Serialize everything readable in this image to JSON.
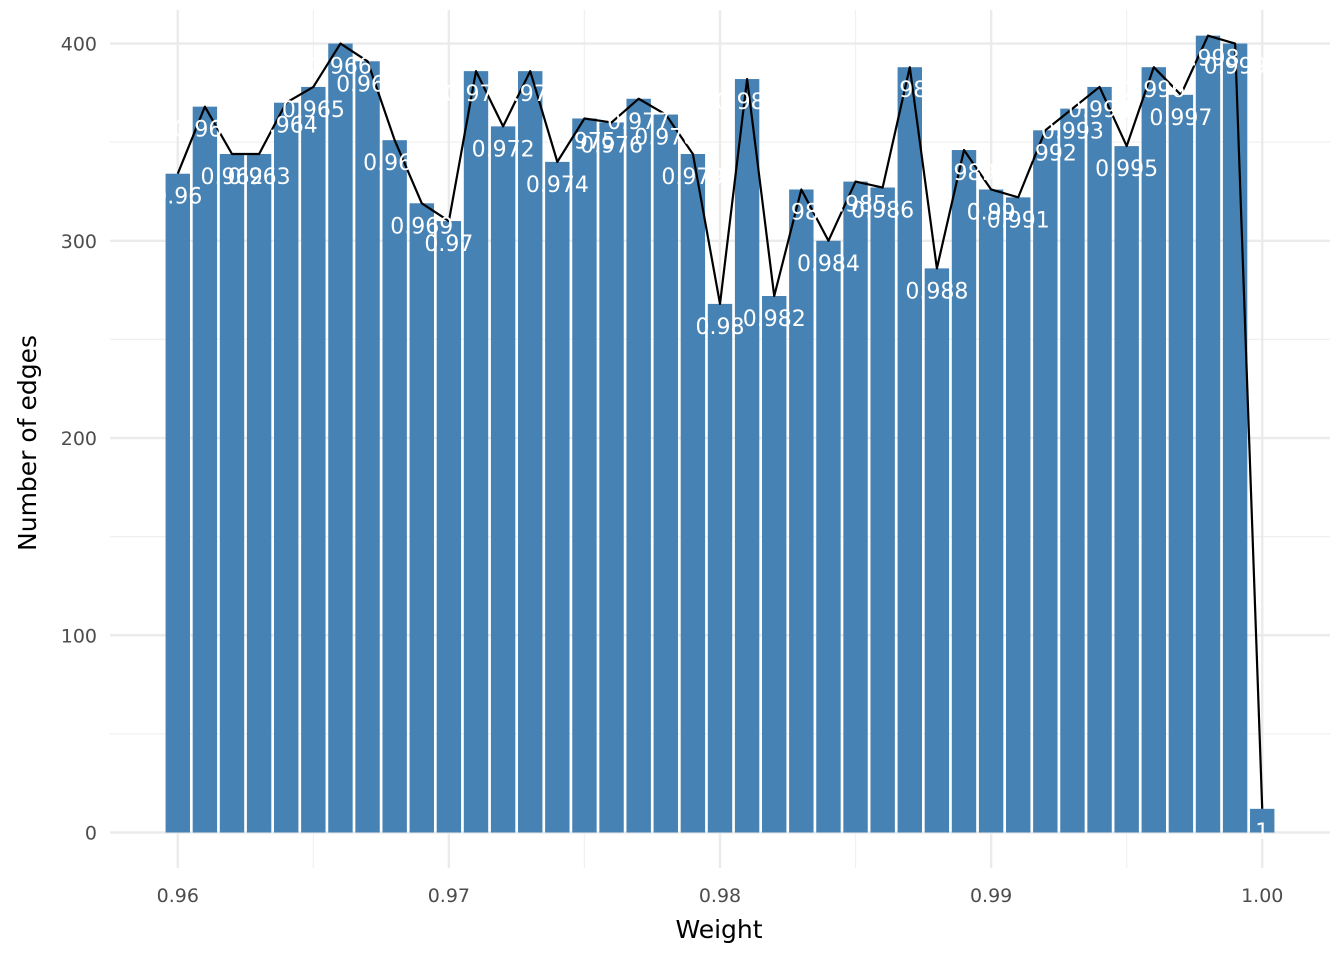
{
  "chart_data": {
    "type": "bar",
    "title": "",
    "xlabel": "Weight",
    "ylabel": "Number of edges",
    "x_ticks": [
      "0.96",
      "0.97",
      "0.98",
      "0.99",
      "1.00"
    ],
    "x_tick_values": [
      0.96,
      0.97,
      0.98,
      0.99,
      1.0
    ],
    "y_ticks": [
      "0",
      "100",
      "200",
      "300",
      "400"
    ],
    "y_tick_values": [
      0,
      100,
      200,
      300,
      400
    ],
    "xlim": [
      0.9575,
      1.0025
    ],
    "ylim": [
      -18,
      417
    ],
    "grid": true,
    "bar_color": "#4682B4",
    "line_color": "#000000",
    "label_color": "#ffffff",
    "bar_width": 0.0009,
    "x": [
      0.96,
      0.961,
      0.962,
      0.963,
      0.964,
      0.965,
      0.966,
      0.967,
      0.968,
      0.969,
      0.97,
      0.971,
      0.972,
      0.973,
      0.974,
      0.975,
      0.976,
      0.977,
      0.978,
      0.979,
      0.98,
      0.981,
      0.982,
      0.983,
      0.984,
      0.985,
      0.986,
      0.987,
      0.988,
      0.989,
      0.99,
      0.991,
      0.992,
      0.993,
      0.994,
      0.995,
      0.996,
      0.997,
      0.998,
      0.999,
      1.0
    ],
    "labels": [
      "0.96",
      "0.961",
      "0.962",
      "0.963",
      "0.964",
      "0.965",
      "0.966",
      "0.967",
      "0.968",
      "0.969",
      "0.97",
      "0.971",
      "0.972",
      "0.973",
      "0.974",
      "0.975",
      "0.976",
      "0.977",
      "0.978",
      "0.979",
      "0.98",
      "0.981",
      "0.982",
      "0.983",
      "0.984",
      "0.985",
      "0.986",
      "0.987",
      "0.988",
      "0.989",
      "0.99",
      "0.991",
      "0.992",
      "0.993",
      "0.994",
      "0.995",
      "0.996",
      "0.997",
      "0.998",
      "0.999",
      "1"
    ],
    "values": [
      334,
      368,
      344,
      344,
      370,
      378,
      400,
      391,
      351,
      319,
      310,
      386,
      358,
      386,
      340,
      362,
      360,
      372,
      364,
      344,
      268,
      382,
      272,
      326,
      300,
      330,
      327,
      388,
      286,
      346,
      326,
      322,
      356,
      367,
      378,
      348,
      388,
      374,
      404,
      400,
      12
    ]
  }
}
